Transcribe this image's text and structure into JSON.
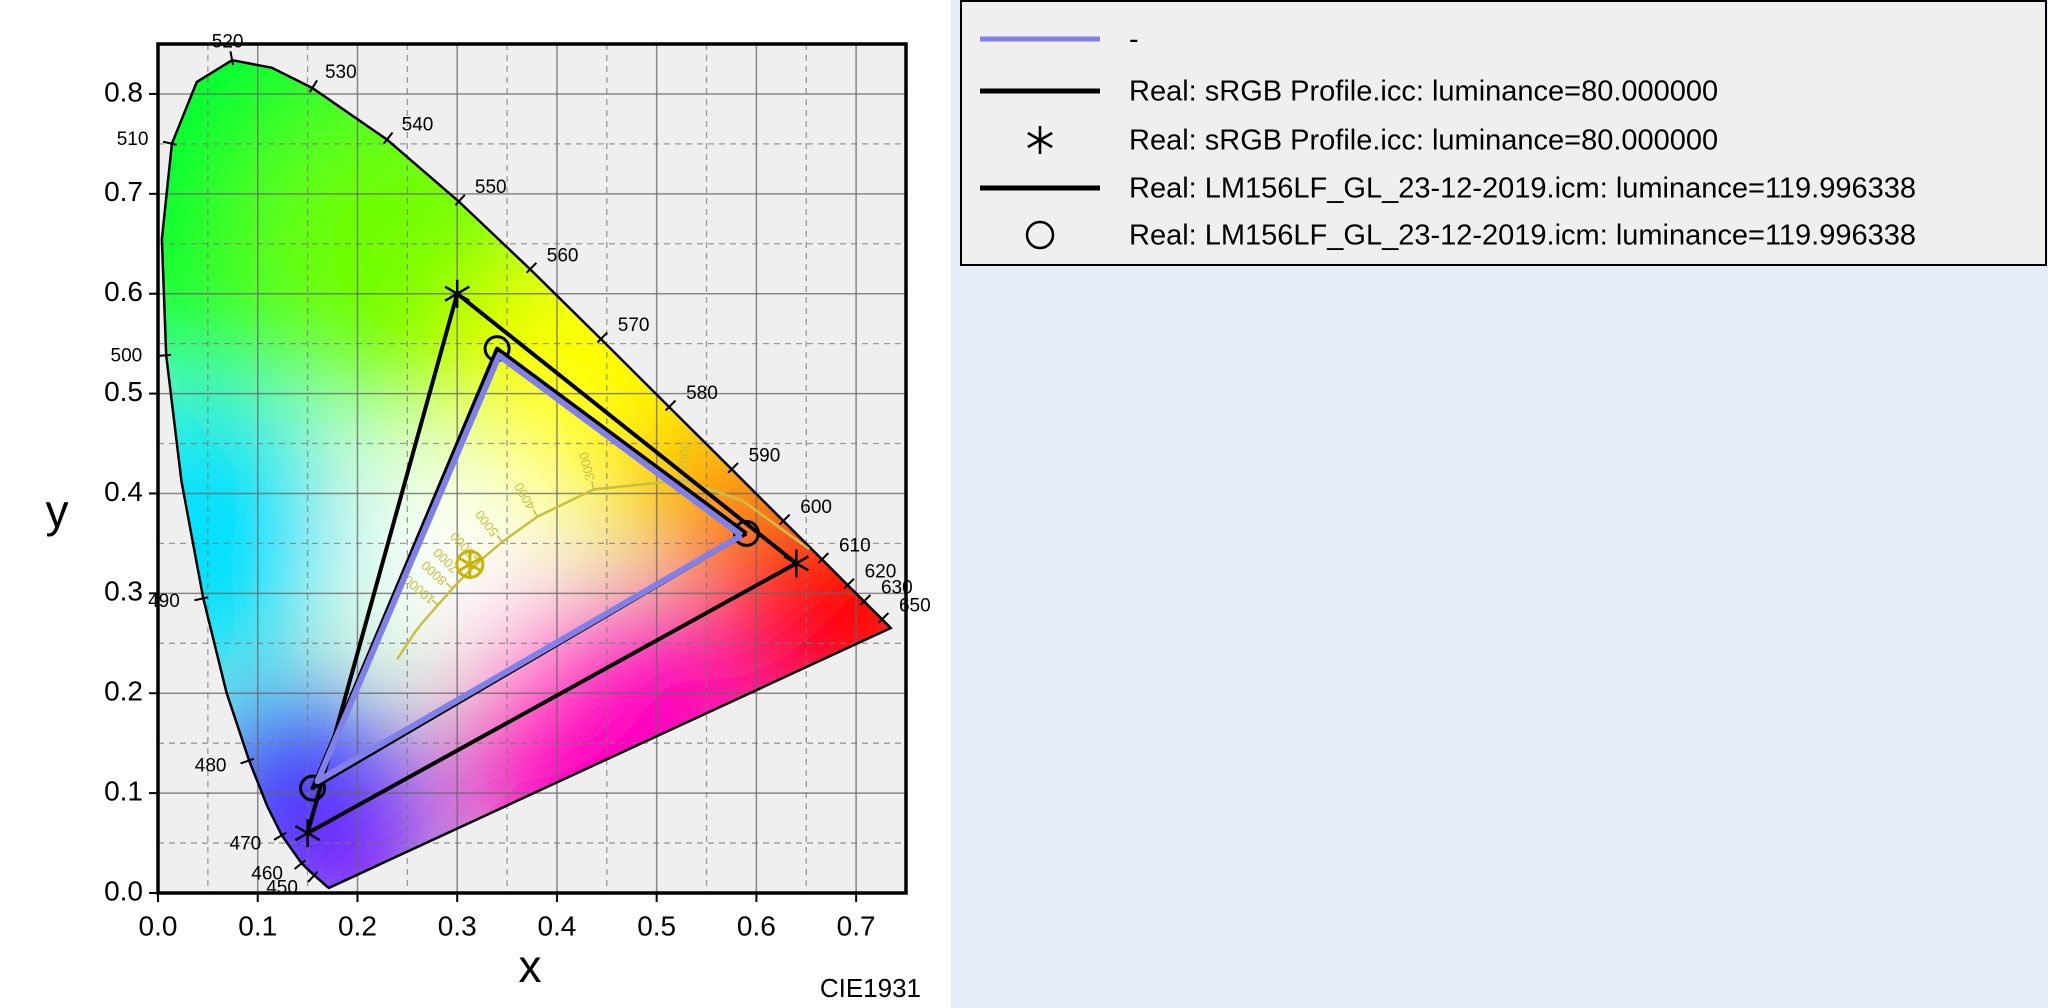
{
  "chart_data": {
    "type": "chromaticity",
    "xlabel": "x",
    "ylabel": "y",
    "annotation": "CIE1931",
    "xlim": [
      0,
      0.75
    ],
    "ylim": [
      0,
      0.85
    ],
    "xticks": [
      {
        "value": 0,
        "label": "0.0"
      },
      0.1,
      0.2,
      0.3,
      0.4,
      0.5,
      0.6,
      0.7
    ],
    "yticks": [
      {
        "value": 0,
        "label": "0.0"
      },
      0.1,
      0.2,
      0.3,
      0.4,
      0.5,
      0.6,
      0.7,
      0.8
    ],
    "xminorticks": [
      0.05,
      0.15,
      0.25,
      0.35,
      0.45,
      0.55,
      0.65,
      0.75
    ],
    "yminorticks": [
      0.05,
      0.15,
      0.25,
      0.35,
      0.45,
      0.55,
      0.65,
      0.75
    ],
    "grid": true,
    "spectral_locus": {
      "wavelengths": [
        null,
        null,
        null,
        450,
        460,
        470,
        null,
        480,
        null,
        490,
        null,
        500,
        null,
        510,
        null,
        520,
        null,
        530,
        540,
        550,
        560,
        570,
        580,
        590,
        600,
        610,
        620,
        630,
        null,
        650,
        null
      ],
      "x": [
        0.1714,
        0.1689,
        0.1644,
        0.1566,
        0.144,
        0.1241,
        0.1096,
        0.0913,
        0.0687,
        0.0454,
        0.0235,
        0.0082,
        0.0039,
        0.0139,
        0.0389,
        0.0743,
        0.1142,
        0.1547,
        0.2296,
        0.3016,
        0.3731,
        0.4441,
        0.5125,
        0.5752,
        0.627,
        0.6658,
        0.6915,
        0.7079,
        0.719,
        0.726,
        0.7347
      ],
      "y": [
        0.0051,
        0.0069,
        0.0109,
        0.0177,
        0.0297,
        0.0578,
        0.0868,
        0.1327,
        0.2007,
        0.295,
        0.4127,
        0.5384,
        0.6548,
        0.7502,
        0.812,
        0.8338,
        0.8262,
        0.8059,
        0.7543,
        0.6923,
        0.6245,
        0.5547,
        0.4866,
        0.4242,
        0.3725,
        0.334,
        0.3083,
        0.292,
        0.2809,
        0.274,
        0.2653
      ]
    },
    "planckian_locus": {
      "color": "#c8c040",
      "temperatures": [
        null,
        null,
        2000,
        3000,
        4000,
        5000,
        6000,
        7000,
        8000,
        10000,
        null,
        null,
        null
      ],
      "x": [
        0.6528,
        0.5857,
        0.5267,
        0.4369,
        0.3805,
        0.3451,
        0.3221,
        0.3064,
        0.2952,
        0.2807,
        0.2637,
        0.2565,
        0.2399
      ],
      "y": [
        0.3444,
        0.3931,
        0.4133,
        0.4041,
        0.3768,
        0.3516,
        0.3318,
        0.3166,
        0.3048,
        0.2884,
        0.269,
        0.2594,
        0.2341
      ]
    },
    "white_point": {
      "x": 0.3127,
      "y": 0.329,
      "color": "#c8b400"
    },
    "series": [
      {
        "name": "-",
        "color": "#8080e8",
        "style": "line",
        "x": [
          0.585,
          0.342,
          0.16,
          0.585
        ],
        "y": [
          0.358,
          0.538,
          0.112,
          0.358
        ]
      },
      {
        "name": "Real: sRGB Profile.icc: luminance=80.000000",
        "color": "#000000",
        "style": "line",
        "x": [
          0.64,
          0.3,
          0.15,
          0.64
        ],
        "y": [
          0.33,
          0.6,
          0.06,
          0.33
        ]
      },
      {
        "name": "Real: sRGB Profile.icc: luminance=80.000000",
        "color": "#000000",
        "style": "star",
        "x": [
          0.64,
          0.3,
          0.15
        ],
        "y": [
          0.33,
          0.6,
          0.06
        ]
      },
      {
        "name": "Real: LM156LF_GL_23-12-2019.icm: luminance=119.996338",
        "color": "#000000",
        "style": "line",
        "x": [
          0.59,
          0.34,
          0.155,
          0.59
        ],
        "y": [
          0.36,
          0.545,
          0.105,
          0.36
        ]
      },
      {
        "name": "Real: LM156LF_GL_23-12-2019.icm: luminance=119.996338",
        "color": "#000000",
        "style": "circle",
        "x": [
          0.59,
          0.34,
          0.155
        ],
        "y": [
          0.36,
          0.545,
          0.105
        ]
      }
    ]
  }
}
